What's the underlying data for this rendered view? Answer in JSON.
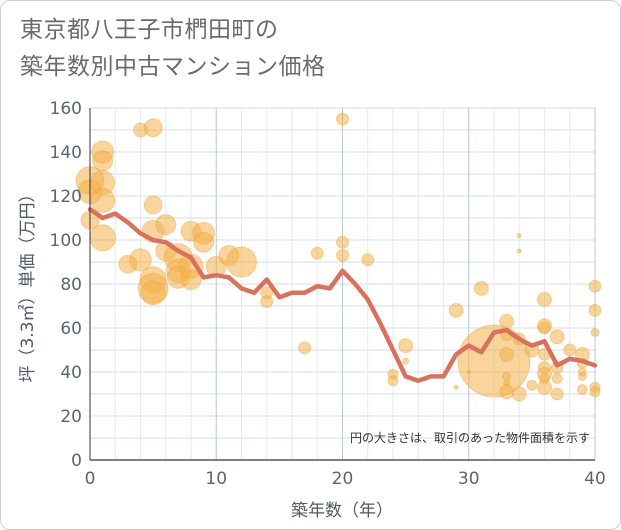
{
  "title_lines": [
    "東京都八王子市椚田町の",
    "築年数別中古マンション価格"
  ],
  "colors": {
    "bubble": "#f4b04a",
    "bubble_stroke": "#e9a235",
    "line": "#d9725d",
    "grid": "#d3dde8",
    "plot_bg": "#ffffff"
  },
  "chart_data": {
    "type": "scatter",
    "xlabel": "築年数（年）",
    "ylabel": "坪（3.3㎡）単価（万円）",
    "xlim": [
      0,
      40
    ],
    "ylim": [
      0,
      160
    ],
    "x_ticks": [
      0,
      10,
      20,
      30,
      40
    ],
    "y_ticks": [
      0,
      20,
      40,
      60,
      80,
      100,
      120,
      140,
      160
    ],
    "grid": true,
    "annotation": "円の大きさは、取引のあった物件面積を示す",
    "series": [
      {
        "kind": "bubble",
        "points": [
          {
            "x": 0,
            "y": 127,
            "s": 14
          },
          {
            "x": 0,
            "y": 122,
            "s": 12
          },
          {
            "x": 1,
            "y": 140,
            "s": 11
          },
          {
            "x": 1,
            "y": 136,
            "s": 10
          },
          {
            "x": 1,
            "y": 126,
            "s": 12
          },
          {
            "x": 1,
            "y": 118,
            "s": 12
          },
          {
            "x": 1,
            "y": 101,
            "s": 13
          },
          {
            "x": 0,
            "y": 109,
            "s": 9
          },
          {
            "x": 4,
            "y": 150,
            "s": 7
          },
          {
            "x": 5,
            "y": 151,
            "s": 9
          },
          {
            "x": 5,
            "y": 116,
            "s": 9
          },
          {
            "x": 5,
            "y": 104,
            "s": 11
          },
          {
            "x": 3,
            "y": 89,
            "s": 9
          },
          {
            "x": 4,
            "y": 91,
            "s": 11
          },
          {
            "x": 5,
            "y": 82,
            "s": 13
          },
          {
            "x": 5,
            "y": 78,
            "s": 15
          },
          {
            "x": 5,
            "y": 76,
            "s": 12
          },
          {
            "x": 6,
            "y": 107,
            "s": 10
          },
          {
            "x": 6,
            "y": 95,
            "s": 10
          },
          {
            "x": 7,
            "y": 92,
            "s": 14
          },
          {
            "x": 7,
            "y": 86,
            "s": 12
          },
          {
            "x": 7,
            "y": 83,
            "s": 11
          },
          {
            "x": 8,
            "y": 104,
            "s": 10
          },
          {
            "x": 8,
            "y": 88,
            "s": 12
          },
          {
            "x": 8,
            "y": 82,
            "s": 10
          },
          {
            "x": 9,
            "y": 103,
            "s": 11
          },
          {
            "x": 9,
            "y": 99,
            "s": 10
          },
          {
            "x": 10,
            "y": 88,
            "s": 10
          },
          {
            "x": 11,
            "y": 93,
            "s": 10
          },
          {
            "x": 12,
            "y": 90,
            "s": 15
          },
          {
            "x": 14,
            "y": 76,
            "s": 6
          },
          {
            "x": 14,
            "y": 72,
            "s": 6
          },
          {
            "x": 17,
            "y": 51,
            "s": 6
          },
          {
            "x": 18,
            "y": 94,
            "s": 6
          },
          {
            "x": 20,
            "y": 155,
            "s": 6
          },
          {
            "x": 20,
            "y": 99,
            "s": 6
          },
          {
            "x": 20,
            "y": 93,
            "s": 6
          },
          {
            "x": 22,
            "y": 91,
            "s": 6
          },
          {
            "x": 24,
            "y": 39,
            "s": 5
          },
          {
            "x": 24,
            "y": 36,
            "s": 5
          },
          {
            "x": 25,
            "y": 52,
            "s": 7
          },
          {
            "x": 25,
            "y": 45,
            "s": 3
          },
          {
            "x": 29,
            "y": 68,
            "s": 7
          },
          {
            "x": 29,
            "y": 33,
            "s": 2
          },
          {
            "x": 30,
            "y": 40,
            "s": 2
          },
          {
            "x": 31,
            "y": 78,
            "s": 7
          },
          {
            "x": 32,
            "y": 45,
            "s": 36
          },
          {
            "x": 33,
            "y": 63,
            "s": 7
          },
          {
            "x": 33,
            "y": 57,
            "s": 6
          },
          {
            "x": 33,
            "y": 48,
            "s": 7
          },
          {
            "x": 33,
            "y": 38,
            "s": 4
          },
          {
            "x": 33,
            "y": 35,
            "s": 3
          },
          {
            "x": 33,
            "y": 31,
            "s": 7
          },
          {
            "x": 34,
            "y": 102,
            "s": 2
          },
          {
            "x": 34,
            "y": 95,
            "s": 2
          },
          {
            "x": 34,
            "y": 55,
            "s": 6
          },
          {
            "x": 34,
            "y": 30,
            "s": 7
          },
          {
            "x": 35,
            "y": 50,
            "s": 7
          },
          {
            "x": 35,
            "y": 34,
            "s": 5
          },
          {
            "x": 36,
            "y": 73,
            "s": 7
          },
          {
            "x": 36,
            "y": 61,
            "s": 7
          },
          {
            "x": 36,
            "y": 60,
            "s": 6
          },
          {
            "x": 36,
            "y": 48,
            "s": 6
          },
          {
            "x": 36,
            "y": 42,
            "s": 6
          },
          {
            "x": 36,
            "y": 39,
            "s": 7
          },
          {
            "x": 36,
            "y": 37,
            "s": 5
          },
          {
            "x": 36,
            "y": 33,
            "s": 7
          },
          {
            "x": 37,
            "y": 56,
            "s": 7
          },
          {
            "x": 37,
            "y": 42,
            "s": 6
          },
          {
            "x": 37,
            "y": 37,
            "s": 5
          },
          {
            "x": 37,
            "y": 30,
            "s": 6
          },
          {
            "x": 38,
            "y": 50,
            "s": 6
          },
          {
            "x": 39,
            "y": 48,
            "s": 7
          },
          {
            "x": 39,
            "y": 44,
            "s": 5
          },
          {
            "x": 39,
            "y": 40,
            "s": 4
          },
          {
            "x": 39,
            "y": 38,
            "s": 4
          },
          {
            "x": 39,
            "y": 32,
            "s": 5
          },
          {
            "x": 40,
            "y": 79,
            "s": 6
          },
          {
            "x": 40,
            "y": 68,
            "s": 6
          },
          {
            "x": 40,
            "y": 58,
            "s": 4
          },
          {
            "x": 40,
            "y": 33,
            "s": 5
          },
          {
            "x": 40,
            "y": 31,
            "s": 5
          }
        ]
      },
      {
        "kind": "line",
        "x": [
          0,
          1,
          2,
          3,
          4,
          5,
          6,
          7,
          8,
          9,
          10,
          11,
          12,
          13,
          14,
          15,
          16,
          17,
          18,
          19,
          20,
          21,
          22,
          23,
          24,
          25,
          26,
          27,
          28,
          29,
          30,
          31,
          32,
          33,
          34,
          35,
          36,
          37,
          38,
          39,
          40
        ],
        "y": [
          114,
          110,
          112,
          108,
          103,
          100,
          99,
          95,
          92,
          83,
          84,
          83,
          78,
          76,
          82,
          74,
          76,
          76,
          79,
          78,
          86,
          80,
          73,
          62,
          50,
          38,
          36,
          38,
          38,
          48,
          52,
          49,
          58,
          59,
          55,
          52,
          54,
          43,
          46,
          45,
          43
        ]
      }
    ]
  }
}
